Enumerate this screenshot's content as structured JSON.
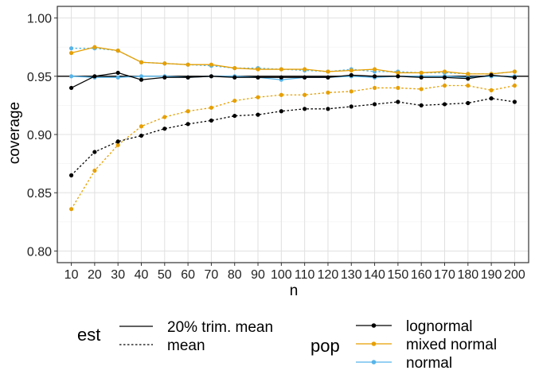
{
  "chart_data": {
    "type": "line",
    "xlabel": "n",
    "ylabel": "coverage",
    "x": [
      10,
      20,
      30,
      40,
      50,
      60,
      70,
      80,
      90,
      100,
      110,
      120,
      130,
      140,
      150,
      160,
      170,
      180,
      190,
      200
    ],
    "x_tick_labels": [
      "10",
      "20",
      "30",
      "40",
      "50",
      "60",
      "70",
      "80",
      "90",
      "100",
      "110",
      "120",
      "130",
      "140",
      "150",
      "160",
      "170",
      "180",
      "190",
      "200"
    ],
    "ylim": [
      0.8,
      1.0
    ],
    "y_ticks": [
      0.8,
      0.85,
      0.9,
      0.95,
      1.0
    ],
    "y_tick_labels": [
      "0.80",
      "0.85",
      "0.90",
      "0.95",
      "1.00"
    ],
    "reference_line": 0.95,
    "grid": true,
    "legend_position": "bottom",
    "colors": {
      "lognormal": "#000000",
      "mixed normal": "#E69F00",
      "normal": "#56B4E9"
    },
    "legend": {
      "est_title": "est",
      "est_entries": [
        {
          "label": "20% trim. mean",
          "linetype": "solid"
        },
        {
          "label": "mean",
          "linetype": "dotted"
        }
      ],
      "pop_title": "pop",
      "pop_entries": [
        "lognormal",
        "mixed normal",
        "normal"
      ]
    },
    "series": [
      {
        "est": "20% trim. mean",
        "pop": "normal",
        "values": [
          0.95,
          0.949,
          0.949,
          0.95,
          0.95,
          0.949,
          0.95,
          0.95,
          0.949,
          0.947,
          0.949,
          0.949,
          0.95,
          0.949,
          0.95,
          0.95,
          0.95,
          0.949,
          0.95,
          0.95
        ]
      },
      {
        "est": "mean",
        "pop": "normal",
        "values": [
          0.974,
          0.974,
          0.972,
          0.962,
          0.961,
          0.96,
          0.959,
          0.957,
          0.957,
          0.956,
          0.955,
          0.954,
          0.956,
          0.954,
          0.954,
          0.953,
          0.953,
          0.952,
          0.952,
          0.954
        ]
      },
      {
        "est": "20% trim. mean",
        "pop": "mixed normal",
        "values": [
          0.97,
          0.975,
          0.972,
          0.962,
          0.961,
          0.96,
          0.96,
          0.957,
          0.956,
          0.956,
          0.956,
          0.954,
          0.955,
          0.956,
          0.953,
          0.953,
          0.954,
          0.952,
          0.952,
          0.954
        ]
      },
      {
        "est": "mean",
        "pop": "mixed normal",
        "values": [
          0.836,
          0.869,
          0.891,
          0.907,
          0.915,
          0.92,
          0.923,
          0.929,
          0.932,
          0.934,
          0.934,
          0.936,
          0.937,
          0.94,
          0.94,
          0.939,
          0.942,
          0.942,
          0.938,
          0.942
        ]
      },
      {
        "est": "20% trim. mean",
        "pop": "lognormal",
        "values": [
          0.94,
          0.95,
          0.953,
          0.947,
          0.949,
          0.949,
          0.95,
          0.949,
          0.949,
          0.949,
          0.949,
          0.949,
          0.951,
          0.95,
          0.95,
          0.949,
          0.949,
          0.948,
          0.951,
          0.949
        ]
      },
      {
        "est": "mean",
        "pop": "lognormal",
        "values": [
          0.865,
          0.885,
          0.894,
          0.899,
          0.905,
          0.909,
          0.912,
          0.916,
          0.917,
          0.92,
          0.922,
          0.922,
          0.924,
          0.926,
          0.928,
          0.925,
          0.926,
          0.927,
          0.931,
          0.928
        ]
      }
    ]
  }
}
